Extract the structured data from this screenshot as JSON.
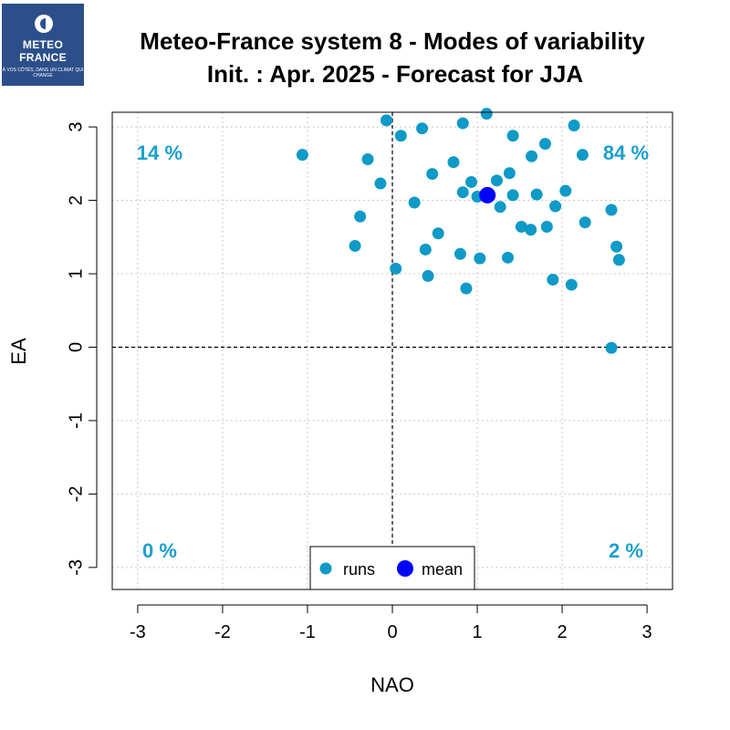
{
  "logo": {
    "line1": "METEO",
    "line2": "FRANCE",
    "tagline": "À VOS CÔTÉS, DANS UN CLIMAT QUI CHANGE"
  },
  "colors": {
    "runs": "#0f9ac7",
    "mean": "#0000ff",
    "pct_text": "#1a9fcf",
    "logo_bg": "#2c4f8a"
  },
  "chart_data": {
    "type": "scatter",
    "title_line1": "Meteo-France system 8 - Modes of variability",
    "title_line2": "Init. : Apr. 2025 - Forecast for JJA",
    "xlabel": "NAO",
    "ylabel": "EA",
    "xlim": [
      -3.3,
      3.3
    ],
    "ylim": [
      -3.3,
      3.2
    ],
    "xticks": [
      -3,
      -2,
      -1,
      0,
      1,
      2,
      3
    ],
    "yticks": [
      -3,
      -2,
      -1,
      0,
      1,
      2,
      3
    ],
    "grid": true,
    "quadrant_percentages": {
      "top_left": "14 %",
      "top_right": "84 %",
      "bottom_left": "0 %",
      "bottom_right": "2 %"
    },
    "legend": {
      "position": "bottom-center",
      "runs_label": "runs",
      "mean_label": "mean"
    },
    "series": [
      {
        "name": "runs",
        "points": [
          [
            -1.06,
            2.62
          ],
          [
            -0.29,
            2.56
          ],
          [
            -0.14,
            2.23
          ],
          [
            -0.38,
            1.78
          ],
          [
            -0.44,
            1.38
          ],
          [
            -0.07,
            3.09
          ],
          [
            0.1,
            2.88
          ],
          [
            0.35,
            2.98
          ],
          [
            0.47,
            2.36
          ],
          [
            0.26,
            1.97
          ],
          [
            0.54,
            1.55
          ],
          [
            0.39,
            1.33
          ],
          [
            0.42,
            0.97
          ],
          [
            0.04,
            1.07
          ],
          [
            0.83,
            3.05
          ],
          [
            1.11,
            3.18
          ],
          [
            0.72,
            2.52
          ],
          [
            0.93,
            2.25
          ],
          [
            0.83,
            2.11
          ],
          [
            1.0,
            2.05
          ],
          [
            1.23,
            2.27
          ],
          [
            1.38,
            2.37
          ],
          [
            1.42,
            2.88
          ],
          [
            1.27,
            1.91
          ],
          [
            1.42,
            2.07
          ],
          [
            1.64,
            2.6
          ],
          [
            1.8,
            2.77
          ],
          [
            1.7,
            2.08
          ],
          [
            1.92,
            1.92
          ],
          [
            2.14,
            3.02
          ],
          [
            2.24,
            2.62
          ],
          [
            2.04,
            2.13
          ],
          [
            1.52,
            1.64
          ],
          [
            1.63,
            1.6
          ],
          [
            1.82,
            1.64
          ],
          [
            2.27,
            1.7
          ],
          [
            2.58,
            1.87
          ],
          [
            0.8,
            1.27
          ],
          [
            1.03,
            1.21
          ],
          [
            1.36,
            1.22
          ],
          [
            0.87,
            0.8
          ],
          [
            1.89,
            0.92
          ],
          [
            2.11,
            0.85
          ],
          [
            2.64,
            1.37
          ],
          [
            2.67,
            1.19
          ],
          [
            2.58,
            -0.01
          ]
        ]
      },
      {
        "name": "mean",
        "points": [
          [
            1.12,
            2.07
          ]
        ]
      }
    ]
  }
}
